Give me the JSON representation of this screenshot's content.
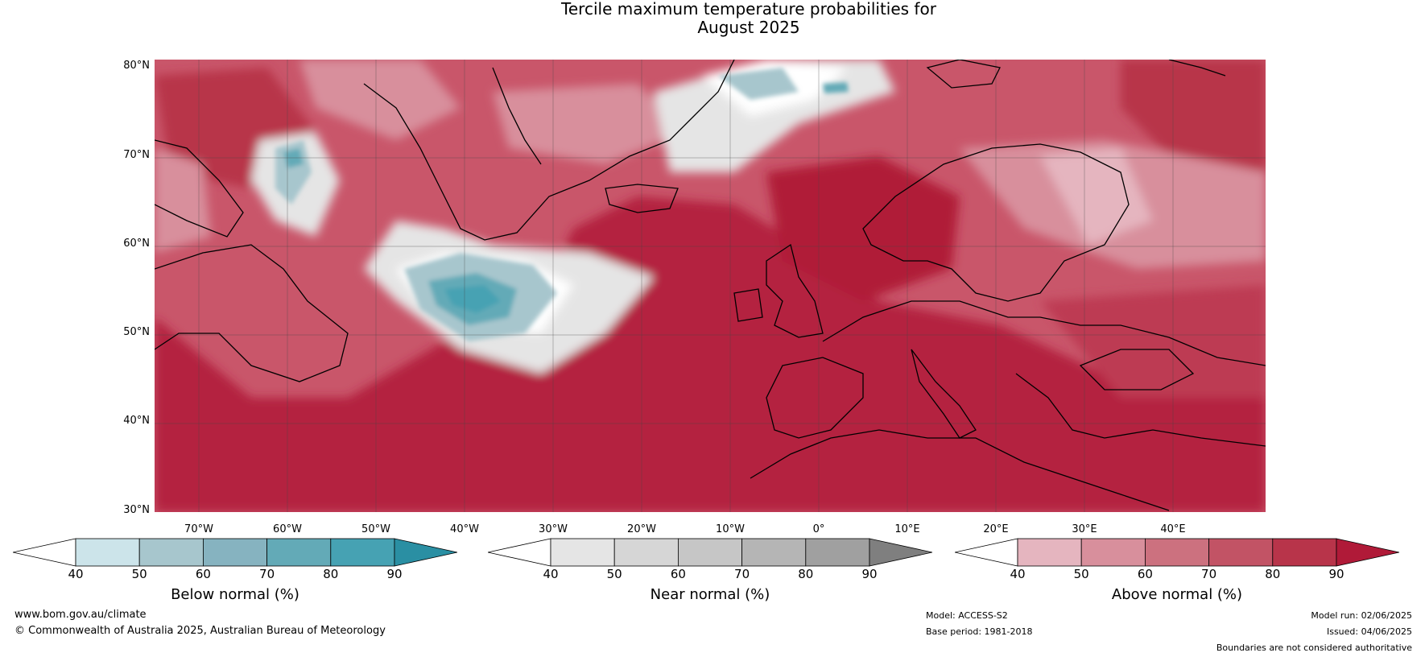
{
  "title_line1": "Tercile maximum temperature probabilities for",
  "title_line2": "August 2025",
  "lat_labels": [
    "80°N",
    "70°N",
    "60°N",
    "50°N",
    "40°N",
    "30°N"
  ],
  "lon_labels": [
    "70°W",
    "60°W",
    "50°W",
    "40°W",
    "30°W",
    "20°W",
    "10°W",
    "0°",
    "10°E",
    "20°E",
    "30°E",
    "40°E"
  ],
  "colorbars": [
    {
      "label": "Below normal (%)",
      "ticks": [
        "40",
        "50",
        "60",
        "70",
        "80",
        "90"
      ],
      "colors": [
        "#ffffff",
        "#cce4ea",
        "#a7c6cd",
        "#86b3c0",
        "#63aab7",
        "#46a2b3",
        "#2a8fa3"
      ]
    },
    {
      "label": "Near normal (%)",
      "ticks": [
        "40",
        "50",
        "60",
        "70",
        "80",
        "90"
      ],
      "colors": [
        "#ffffff",
        "#e5e5e5",
        "#d6d6d6",
        "#c6c6c6",
        "#b5b5b5",
        "#a0a0a0",
        "#7f7f7f"
      ]
    },
    {
      "label": "Above normal (%)",
      "ticks": [
        "40",
        "50",
        "60",
        "70",
        "80",
        "90"
      ],
      "colors": [
        "#ffffff",
        "#e5b5bf",
        "#d88f9c",
        "#cc717f",
        "#c25365",
        "#b8344a",
        "#b01a38"
      ]
    }
  ],
  "footer": {
    "website": "www.bom.gov.au/climate",
    "copyright": "© Commonwealth of Australia 2025, Australian Bureau of Meteorology",
    "model": "Model: ACCESS-S2",
    "base_period": "Base period: 1981-2018",
    "model_run": "Model run: 02/06/2025",
    "issued": "Issued: 04/06/2025",
    "disclaimer": "Boundaries are not considered authoritative"
  }
}
